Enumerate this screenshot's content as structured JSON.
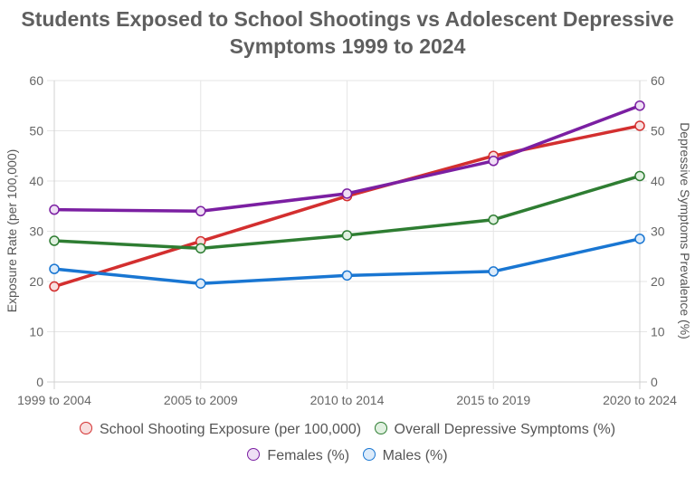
{
  "chart_data": {
    "type": "line",
    "title": "Students Exposed to School Shootings vs Adolescent Depressive Symptoms 1999 to 2024",
    "title_lines": [
      "Students Exposed to School Shootings vs Adolescent Depressive",
      "Symptoms 1999 to 2024"
    ],
    "categories": [
      "1999 to 2004",
      "2005 to 2009",
      "2010 to 2014",
      "2015 to 2019",
      "2020 to 2024"
    ],
    "xlabel": "",
    "ylabel": "Exposure Rate (per 100,000)",
    "y2label": "Depressive Symptoms Prevalence (%)",
    "ylim": [
      0,
      60
    ],
    "y2lim": [
      0,
      60
    ],
    "yticks": [
      0,
      10,
      20,
      30,
      40,
      50,
      60
    ],
    "y2ticks": [
      0,
      10,
      20,
      30,
      40,
      50,
      60
    ],
    "grid": true,
    "legend_position": "bottom",
    "series": [
      {
        "name": "School Shooting Exposure (per 100,000)",
        "axis": "left",
        "color": "#d32f2f",
        "fill": "#f8dede",
        "values": [
          19.0,
          28.0,
          37.0,
          45.0,
          51.0
        ]
      },
      {
        "name": "Overall Depressive Symptoms (%)",
        "axis": "right",
        "color": "#2e7d32",
        "fill": "#e0f0e0",
        "values": [
          28.1,
          26.6,
          29.2,
          32.3,
          41.0
        ]
      },
      {
        "name": "Females (%)",
        "axis": "right",
        "color": "#7b1fa2",
        "fill": "#efdff5",
        "values": [
          34.3,
          34.0,
          37.5,
          44.0,
          55.0
        ]
      },
      {
        "name": "Males (%)",
        "axis": "right",
        "color": "#1976d2",
        "fill": "#dcebfa",
        "values": [
          22.5,
          19.6,
          21.2,
          22.0,
          28.5
        ]
      }
    ]
  }
}
